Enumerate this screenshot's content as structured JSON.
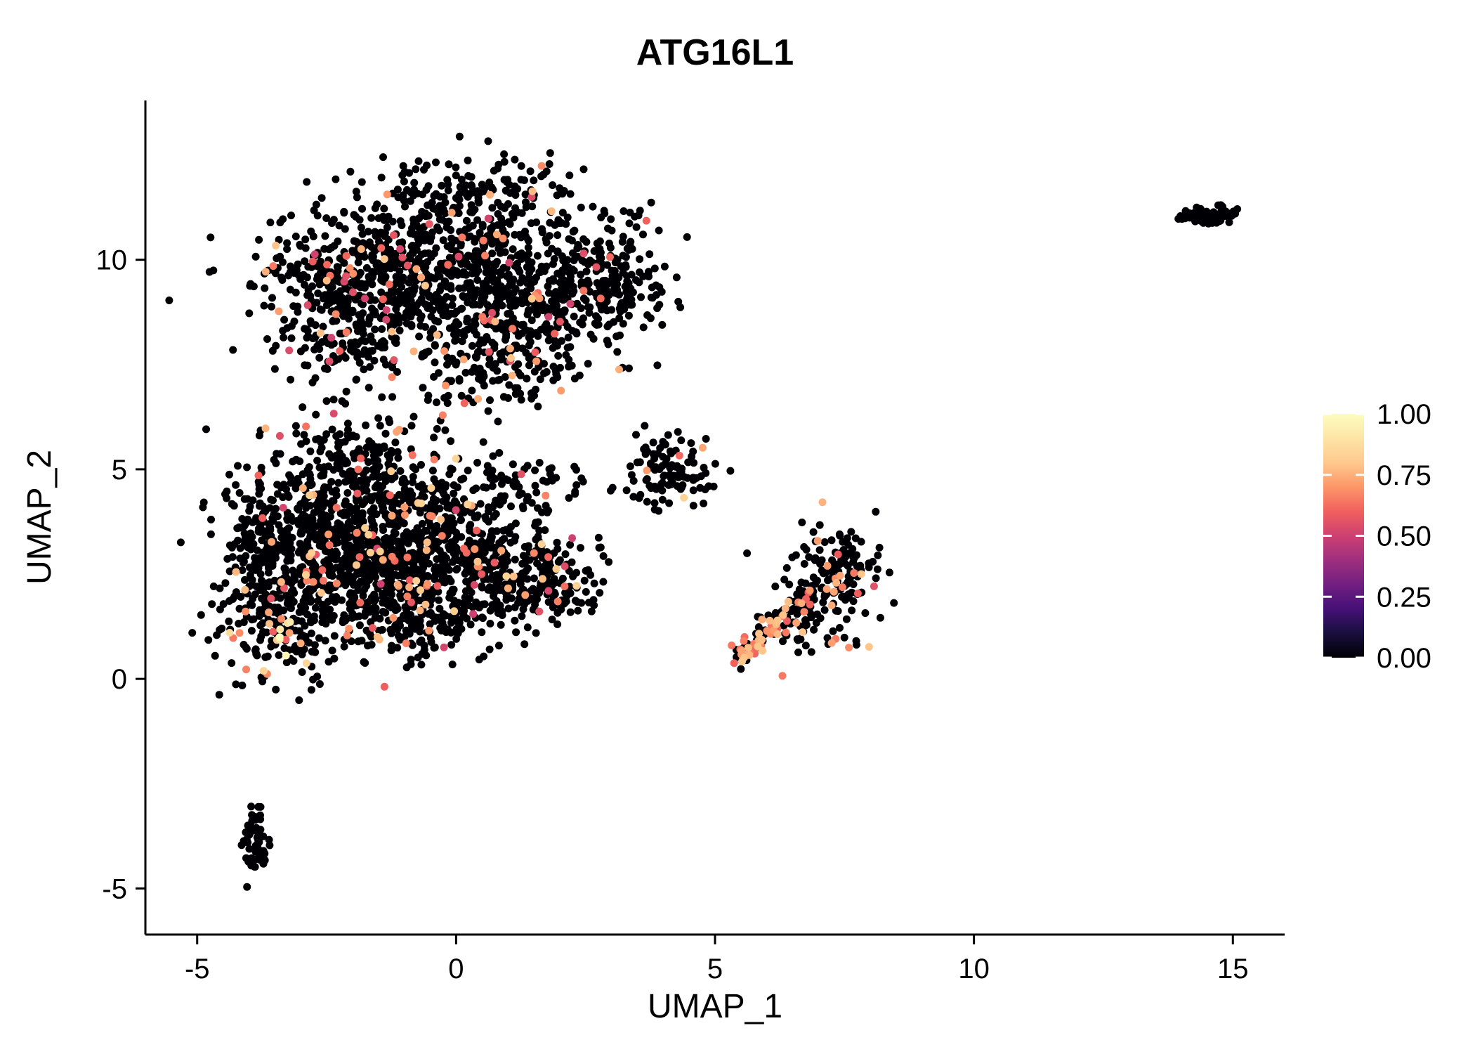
{
  "title": "ATG16L1",
  "axes": {
    "x": {
      "label": "UMAP_1",
      "tick_labels": [
        "-5",
        "0",
        "5",
        "10",
        "15"
      ],
      "tick_values": [
        -5,
        0,
        5,
        10,
        15
      ]
    },
    "y": {
      "label": "UMAP_2",
      "tick_labels": [
        "-5",
        "0",
        "5",
        "10"
      ],
      "tick_values": [
        -5,
        0,
        5,
        10
      ]
    }
  },
  "colorbar": {
    "tick_labels": [
      "1.00",
      "0.75",
      "0.50",
      "0.25",
      "0.00"
    ],
    "tick_values": [
      1,
      0.75,
      0.5,
      0.25,
      0
    ],
    "gradient": [
      {
        "t": 0,
        "color": "#000004"
      },
      {
        "t": 0.1,
        "color": "#180f3e"
      },
      {
        "t": 0.2,
        "color": "#451077"
      },
      {
        "t": 0.3,
        "color": "#721f81"
      },
      {
        "t": 0.4,
        "color": "#9f2f7f"
      },
      {
        "t": 0.5,
        "color": "#cd4071"
      },
      {
        "t": 0.6,
        "color": "#f1605d"
      },
      {
        "t": 0.7,
        "color": "#fd9668"
      },
      {
        "t": 0.8,
        "color": "#fec98d"
      },
      {
        "t": 0.9,
        "color": "#fde4a6"
      },
      {
        "t": 1,
        "color": "#fcfdbf"
      }
    ]
  },
  "chart_data": {
    "type": "scatter",
    "title": "ATG16L1",
    "xlabel": "UMAP_1",
    "ylabel": "UMAP_2",
    "xlim": [
      -6.0,
      16.0
    ],
    "ylim": [
      -6.1,
      13.8
    ],
    "legend_position": "right",
    "colormap": "magma",
    "colorbar_range": [
      0.0,
      1.0
    ],
    "point_radius_px": 5.5,
    "seed": 20240607,
    "clusters": [
      {
        "name": "upper-blob-core",
        "type": "gauss",
        "n": 480,
        "cx": 0.3,
        "cy": 10.2,
        "sx": 1.5,
        "sy": 0.85,
        "frac": 0.05,
        "vmin": 0.5,
        "vmax": 0.8
      },
      {
        "name": "upper-blob-left",
        "type": "gauss",
        "n": 340,
        "cx": -1.3,
        "cy": 9.0,
        "sx": 1.1,
        "sy": 0.8,
        "frac": 0.06,
        "vmin": 0.5,
        "vmax": 0.8
      },
      {
        "name": "upper-blob-lowermid",
        "type": "gauss",
        "n": 260,
        "cx": 1.4,
        "cy": 8.7,
        "sx": 1.0,
        "sy": 0.75,
        "frac": 0.06,
        "vmin": 0.5,
        "vmax": 0.8
      },
      {
        "name": "upper-blob-left-arm",
        "type": "gauss",
        "n": 120,
        "cx": -2.5,
        "cy": 9.6,
        "sx": 0.55,
        "sy": 0.5,
        "frac": 0.07,
        "vmin": 0.5,
        "vmax": 0.8
      },
      {
        "name": "upper-blob-top",
        "type": "gauss",
        "n": 130,
        "cx": 0.2,
        "cy": 11.6,
        "sx": 1.0,
        "sy": 0.45,
        "frac": 0.04,
        "vmin": 0.5,
        "vmax": 0.8
      },
      {
        "name": "upper-blob-right",
        "type": "gauss",
        "n": 150,
        "cx": 2.9,
        "cy": 9.4,
        "sx": 0.65,
        "sy": 0.6,
        "frac": 0.03,
        "vmin": 0.5,
        "vmax": 0.8
      },
      {
        "name": "upper-blob-bottom-tail",
        "type": "gauss",
        "n": 120,
        "cx": 0.6,
        "cy": 7.3,
        "sx": 0.85,
        "sy": 0.5,
        "frac": 0.08,
        "vmin": 0.5,
        "vmax": 0.8
      },
      {
        "name": "upper-blob-left-tail",
        "type": "gauss",
        "n": 60,
        "cx": -2.3,
        "cy": 7.9,
        "sx": 0.5,
        "sy": 0.4,
        "frac": 0.05,
        "vmin": 0.5,
        "vmax": 0.8
      },
      {
        "name": "lower-blob-core",
        "type": "gauss",
        "n": 500,
        "cx": -2.5,
        "cy": 3.3,
        "sx": 0.9,
        "sy": 0.9,
        "frac": 0.07,
        "vmin": 0.5,
        "vmax": 0.85
      },
      {
        "name": "lower-blob-core2",
        "type": "gauss",
        "n": 400,
        "cx": -1.2,
        "cy": 2.6,
        "sx": 1.0,
        "sy": 0.8,
        "frac": 0.07,
        "vmin": 0.5,
        "vmax": 0.85
      },
      {
        "name": "lower-blob-bottomleft",
        "type": "gauss",
        "n": 200,
        "cx": -3.3,
        "cy": 1.2,
        "sx": 0.55,
        "sy": 0.65,
        "frac": 0.08,
        "vmin": 0.5,
        "vmax": 0.9
      },
      {
        "name": "lower-blob-upper",
        "type": "gauss",
        "n": 250,
        "cx": -0.2,
        "cy": 3.9,
        "sx": 1.0,
        "sy": 0.7,
        "frac": 0.06,
        "vmin": 0.5,
        "vmax": 0.85
      },
      {
        "name": "lower-blob-right",
        "type": "gauss",
        "n": 200,
        "cx": 0.8,
        "cy": 2.6,
        "sx": 0.9,
        "sy": 0.6,
        "frac": 0.05,
        "vmin": 0.5,
        "vmax": 0.85
      },
      {
        "name": "lower-blob-top",
        "type": "gauss",
        "n": 180,
        "cx": -2.0,
        "cy": 5.2,
        "sx": 0.8,
        "sy": 0.6,
        "frac": 0.06,
        "vmin": 0.5,
        "vmax": 0.85
      },
      {
        "name": "lower-blob-left-edge",
        "type": "gauss",
        "n": 120,
        "cx": -3.85,
        "cy": 2.9,
        "sx": 0.3,
        "sy": 0.95,
        "frac": 0.06,
        "vmin": 0.5,
        "vmax": 0.85
      },
      {
        "name": "lower-blob-right-tip",
        "type": "gauss",
        "n": 110,
        "cx": 1.8,
        "cy": 2.3,
        "sx": 0.55,
        "sy": 0.45,
        "frac": 0.05,
        "vmin": 0.5,
        "vmax": 0.85
      },
      {
        "name": "lower-blob-bottom",
        "type": "gauss",
        "n": 150,
        "cx": -0.6,
        "cy": 1.3,
        "sx": 0.85,
        "sy": 0.45,
        "frac": 0.05,
        "vmin": 0.5,
        "vmax": 0.85
      },
      {
        "name": "lower-blob-sparse-right",
        "type": "gauss",
        "n": 50,
        "cx": 1.4,
        "cy": 4.7,
        "sx": 0.6,
        "sy": 0.25,
        "frac": 0.1,
        "vmin": 0.5,
        "vmax": 0.8
      },
      {
        "name": "lower-blob-yellow-spots",
        "type": "gauss",
        "n": 5,
        "cx": -3.4,
        "cy": 1.0,
        "sx": 0.25,
        "sy": 0.35,
        "frac": 1.0,
        "vmin": 0.9,
        "vmax": 1.0
      },
      {
        "name": "small-mid-cluster",
        "type": "gauss",
        "n": 110,
        "cx": 4.15,
        "cy": 4.9,
        "sx": 0.42,
        "sy": 0.42,
        "frac": 0.04,
        "vmin": 0.6,
        "vmax": 1.0
      },
      {
        "name": "right-cluster-tail",
        "type": "line",
        "n": 110,
        "x1": 5.45,
        "y1": 0.45,
        "x2": 6.9,
        "y2": 2.1,
        "noise": 0.13,
        "frac": 0.5,
        "vmin": 0.55,
        "vmax": 0.8
      },
      {
        "name": "right-cluster-blob",
        "type": "gauss",
        "n": 150,
        "cx": 7.3,
        "cy": 2.5,
        "sx": 0.42,
        "sy": 0.55,
        "frac": 0.1,
        "vmin": 0.55,
        "vmax": 0.8
      },
      {
        "name": "right-cluster-mid",
        "type": "gauss",
        "n": 35,
        "cx": 6.4,
        "cy": 1.3,
        "sx": 0.35,
        "sy": 0.35,
        "frac": 0.2,
        "vmin": 0.55,
        "vmax": 0.8
      },
      {
        "name": "right-cluster-outliers",
        "type": "gauss",
        "n": 10,
        "cx": 7.6,
        "cy": 0.9,
        "sx": 0.3,
        "sy": 0.15,
        "frac": 0.3,
        "vmin": 0.55,
        "vmax": 0.8
      },
      {
        "name": "far-right-cluster",
        "type": "gauss",
        "n": 70,
        "cx": 14.55,
        "cy": 11.05,
        "sx": 0.3,
        "sy": 0.11,
        "frac": 0.0,
        "vmin": 0,
        "vmax": 0
      },
      {
        "name": "bottom-left-cluster",
        "type": "gauss",
        "n": 55,
        "cx": -3.85,
        "cy": -3.85,
        "sx": 0.13,
        "sy": 0.42,
        "frac": 0.0,
        "vmin": 0,
        "vmax": 0
      }
    ]
  }
}
